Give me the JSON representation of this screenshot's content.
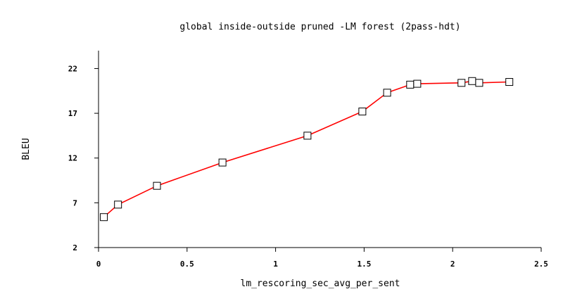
{
  "chart_data": {
    "type": "line",
    "title": "global inside-outside pruned -LM forest (2pass-hdt)",
    "xlabel": "lm_rescoring_sec_avg_per_sent",
    "ylabel": "BLEU",
    "xlim": [
      0,
      2.5
    ],
    "ylim": [
      2,
      24
    ],
    "xticks": [
      0,
      0.5,
      1,
      1.5,
      2,
      2.5
    ],
    "xtick_labels": [
      "0",
      "0.5",
      "1",
      "1.5",
      "2",
      "2.5"
    ],
    "yticks": [
      2,
      7,
      12,
      17,
      22
    ],
    "ytick_labels": [
      "2",
      "7",
      "12",
      "17",
      "22"
    ],
    "grid": false,
    "legend": "none",
    "series": [
      {
        "color": "#ff0000",
        "marker": "open-square",
        "x": [
          0.03,
          0.11,
          0.33,
          0.7,
          1.18,
          1.49,
          1.63,
          1.76,
          1.8,
          2.05,
          2.11,
          2.15,
          2.32
        ],
        "y": [
          5.4,
          6.8,
          8.9,
          11.5,
          14.5,
          17.2,
          19.3,
          20.2,
          20.3,
          20.4,
          20.6,
          20.4,
          20.5
        ]
      }
    ]
  }
}
